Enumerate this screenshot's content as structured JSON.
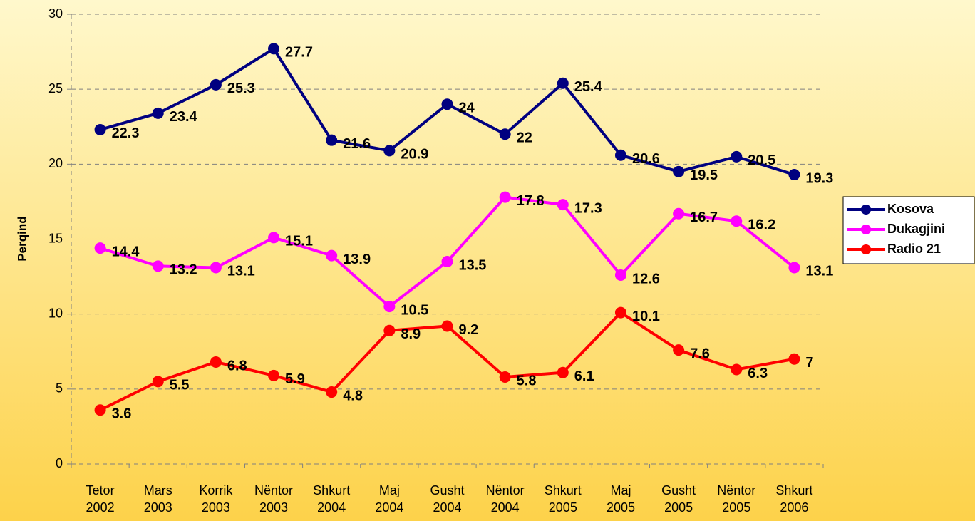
{
  "chart_data": {
    "type": "line",
    "y_label": "Perqind",
    "categories": [
      "Tetor 2002",
      "Mars 2003",
      "Korrik 2003",
      "Nëntor 2003",
      "Shkurt 2004",
      "Maj 2004",
      "Gusht 2004",
      "Nëntor 2004",
      "Shkurt 2005",
      "Maj 2005",
      "Gusht 2005",
      "Nëntor 2005",
      "Shkurt 2006"
    ],
    "series": [
      {
        "name": "Kosova",
        "color": "#000080",
        "values": [
          22.3,
          23.4,
          25.3,
          27.7,
          21.6,
          20.9,
          24,
          22,
          25.4,
          20.6,
          19.5,
          20.5,
          19.3
        ]
      },
      {
        "name": "Dukagjini",
        "color": "#ff00ff",
        "values": [
          14.4,
          13.2,
          13.1,
          15.1,
          13.9,
          10.5,
          13.5,
          17.8,
          17.3,
          12.6,
          16.7,
          16.2,
          13.1
        ]
      },
      {
        "name": "Radio 21",
        "color": "#ff0000",
        "values": [
          3.6,
          5.5,
          6.8,
          5.9,
          4.8,
          8.9,
          9.2,
          5.8,
          6.1,
          10.1,
          7.6,
          6.3,
          7
        ]
      }
    ],
    "ylim": [
      0,
      30
    ],
    "yticks": [
      0,
      5,
      10,
      15,
      20,
      25,
      30
    ],
    "grid": true,
    "legend": "right"
  }
}
